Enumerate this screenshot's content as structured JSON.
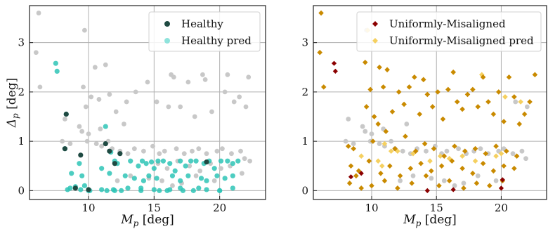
{
  "chart_data": [
    {
      "type": "scatter",
      "xlabel": "M_p [deg]",
      "ylabel": "Δ_p [deg]",
      "xlim": [
        5.5,
        23.5
      ],
      "ylim": [
        -0.18,
        3.75
      ],
      "xticks": [
        10,
        15,
        20
      ],
      "yticks": [
        0,
        1,
        2,
        3
      ],
      "grid": true,
      "legend_position": "top-right",
      "background_points": {
        "color": "#c8c8c8",
        "x": [
          6.2,
          6.0,
          6.3,
          9.7,
          9.6,
          10.5,
          11.3,
          9.8,
          10.2,
          10.8,
          11.6,
          12.1,
          12.9,
          13.6,
          14.5,
          15.2,
          16.3,
          16.5,
          16.1,
          17.0,
          17.6,
          18.1,
          18.7,
          18.9,
          19.4,
          20.4,
          20.6,
          21.1,
          21.5,
          22.0,
          22.2,
          8.2,
          8.0,
          8.6,
          9.3,
          9.9,
          10.6,
          11.0,
          11.8,
          12.4,
          13.0,
          13.5,
          14.2,
          14.9,
          15.4,
          15.8,
          16.7,
          17.3,
          17.9,
          18.4,
          19.0,
          19.8,
          20.2,
          20.9,
          21.6,
          21.9,
          15.3,
          16.0,
          16.8,
          17.7,
          18.5,
          19.3,
          20.1,
          20.8,
          21.7,
          22.3,
          12.2,
          13.2,
          14.6,
          15.6,
          16.4,
          17.1,
          18.2,
          19.6,
          9.5,
          10.0,
          10.9,
          11.5,
          12.7
        ],
        "y": [
          3.6,
          2.8,
          2.1,
          3.25,
          2.1,
          2.5,
          2.55,
          1.7,
          1.9,
          1.85,
          1.95,
          1.6,
          1.8,
          2.0,
          2.2,
          1.8,
          2.35,
          2.3,
          1.7,
          1.7,
          2.2,
          1.5,
          2.35,
          2.25,
          1.6,
          2.0,
          2.35,
          1.8,
          1.9,
          1.7,
          2.3,
          1.45,
          1.0,
          0.95,
          1.3,
          1.0,
          0.95,
          0.9,
          0.85,
          0.8,
          0.75,
          0.85,
          0.8,
          0.9,
          0.75,
          0.8,
          0.85,
          0.75,
          0.8,
          0.85,
          0.75,
          0.8,
          0.85,
          0.75,
          0.8,
          0.65,
          0.55,
          0.45,
          0.6,
          0.5,
          0.4,
          0.55,
          0.45,
          0.5,
          0.35,
          0.6,
          0.2,
          0.3,
          0.25,
          0.2,
          0.1,
          0.15,
          0.3,
          0.2,
          1.2,
          1.15,
          1.25,
          1.0,
          1.35
        ]
      },
      "series": [
        {
          "name": "Healthy pred",
          "color": "#2ec4b6",
          "x": [
            7.5,
            7.6,
            8.3,
            8.2,
            8.7,
            9.3,
            9.5,
            9.7,
            11.3,
            11.7,
            12.0,
            12.2,
            8.4,
            8.6,
            9.0,
            9.4,
            10.1,
            11.0,
            11.6,
            12.8,
            13.2,
            13.8,
            14.1,
            14.4,
            14.8,
            15.0,
            15.3,
            15.7,
            16.2,
            16.6,
            17.0,
            17.4,
            17.8,
            18.2,
            18.8,
            19.2,
            19.6,
            20.1,
            20.6,
            21.0,
            21.4,
            13.5,
            14.2,
            14.6,
            15.2,
            16.4,
            17.0,
            17.6,
            18.6,
            19.0,
            19.8,
            20.4,
            21.0,
            11.4,
            11.9,
            12.5,
            14.0,
            15.4,
            16.2,
            17.2,
            18.4,
            20.0,
            10.0,
            11.0,
            12.0,
            13.0,
            14.0,
            15.0,
            16.0,
            17.0,
            18.0,
            19.0,
            20.0,
            21.0
          ],
          "y": [
            2.58,
            2.42,
            1.55,
            0.85,
            0.35,
            0.55,
            0.3,
            0.1,
            1.3,
            0.78,
            0.6,
            0.55,
            0.02,
            0.05,
            0.08,
            0.02,
            0.0,
            0.45,
            0.35,
            0.3,
            0.6,
            0.5,
            0.6,
            0.55,
            0.58,
            0.45,
            0.6,
            0.6,
            0.55,
            0.4,
            0.6,
            0.5,
            0.6,
            0.6,
            0.55,
            0.6,
            0.45,
            0.6,
            0.6,
            0.55,
            0.6,
            0.25,
            0.2,
            0.3,
            0.25,
            0.3,
            0.2,
            0.3,
            0.25,
            0.2,
            0.3,
            0.25,
            0.3,
            0.0,
            0.02,
            0.0,
            0.05,
            0.0,
            0.02,
            0.0,
            0.05,
            0.0,
            0.0,
            0.02,
            0.0,
            0.05,
            0.0,
            0.02,
            0.0,
            0.05,
            0.0,
            0.02,
            0.0,
            0.05
          ]
        },
        {
          "name": "Healthy",
          "color": "#1f4a42",
          "x": [
            8.3,
            8.2,
            9.4,
            11.3,
            11.6,
            12.0,
            12.4,
            19.0,
            9.0,
            10.0
          ],
          "y": [
            1.55,
            0.85,
            0.72,
            0.95,
            0.8,
            0.55,
            0.75,
            0.58,
            0.05,
            0.02
          ]
        }
      ]
    },
    {
      "type": "scatter",
      "xlabel": "M_p [deg]",
      "ylabel": "",
      "xlim": [
        5.5,
        23.5
      ],
      "ylim": [
        -0.18,
        3.75
      ],
      "xticks": [
        10,
        15,
        20
      ],
      "yticks": [
        0,
        1,
        2,
        3
      ],
      "grid": true,
      "legend_position": "top-right",
      "background_points": {
        "color": "#c8c8c8",
        "x": [
          8.2,
          8.0,
          8.6,
          9.3,
          9.9,
          10.6,
          11.0,
          11.8,
          12.4,
          13.0,
          13.5,
          14.2,
          14.9,
          15.4,
          15.8,
          16.7,
          17.3,
          17.9,
          18.4,
          19.0,
          19.8,
          20.2,
          20.9,
          21.6,
          21.9,
          12.2,
          13.2,
          14.6,
          15.6,
          16.4,
          17.1,
          18.2,
          19.6,
          9.5,
          10.0,
          10.9,
          11.5,
          12.7,
          9.6,
          21.1,
          22.0
        ],
        "y": [
          1.45,
          1.0,
          0.95,
          1.3,
          1.0,
          0.95,
          0.9,
          0.85,
          0.8,
          0.75,
          0.85,
          0.8,
          0.9,
          0.75,
          0.8,
          0.85,
          0.75,
          0.8,
          0.85,
          0.75,
          0.8,
          0.85,
          0.75,
          0.8,
          0.65,
          0.2,
          0.3,
          0.25,
          0.2,
          0.1,
          0.15,
          0.3,
          0.2,
          1.2,
          1.15,
          1.25,
          1.0,
          1.35,
          3.25,
          1.8,
          1.7
        ]
      },
      "series": [
        {
          "name": "Uniformly-Misaligned pred",
          "color": "#f5d060",
          "x": [
            9.7,
            11.0,
            11.5,
            12.0,
            10.8,
            15.3,
            16.3,
            18.5,
            19.6,
            20.3,
            21.5,
            13.2,
            14.5,
            16.0,
            17.0,
            18.0,
            20.0,
            9.2,
            10.5
          ],
          "y": [
            3.25,
            0.95,
            0.8,
            0.8,
            0.5,
            0.7,
            2.4,
            2.35,
            0.7,
            1.9,
            1.8,
            0.75,
            0.6,
            0.65,
            0.7,
            0.6,
            0.75,
            0.7,
            0.6
          ]
        },
        {
          "name": "Uniformly-Misaligned",
          "color": "#c98a00",
          "x": [
            6.1,
            6.0,
            6.3,
            8.2,
            8.6,
            8.8,
            9.5,
            9.9,
            10.2,
            10.6,
            10.9,
            11.2,
            11.6,
            12.1,
            12.5,
            12.9,
            13.3,
            13.7,
            14.0,
            14.3,
            14.7,
            15.1,
            15.5,
            15.9,
            16.3,
            16.6,
            17.0,
            17.4,
            17.8,
            18.2,
            18.6,
            19.0,
            19.4,
            19.8,
            20.2,
            20.6,
            21.0,
            21.4,
            21.8,
            22.2,
            22.6,
            9.6,
            10.1,
            10.5,
            11.1,
            11.8,
            12.6,
            13.4,
            14.1,
            14.8,
            15.6,
            16.4,
            17.2,
            18.0,
            18.8,
            19.6,
            20.4,
            21.2,
            8.4,
            9.0,
            9.8,
            10.7,
            11.4,
            12.2,
            13.0,
            13.8,
            14.6,
            15.4,
            16.2,
            17.0,
            17.8,
            18.6,
            19.4,
            20.2,
            21.0,
            8.3,
            9.2,
            10.0,
            11.0,
            12.0,
            13.1,
            14.2,
            15.2,
            16.0,
            17.1,
            18.1,
            19.1,
            20.1
          ],
          "y": [
            3.6,
            2.8,
            2.1,
            0.9,
            0.85,
            0.3,
            2.6,
            2.05,
            1.5,
            2.5,
            2.1,
            2.45,
            1.6,
            2.0,
            1.75,
            2.1,
            2.3,
            1.55,
            2.25,
            1.95,
            1.7,
            2.0,
            1.45,
            2.05,
            2.4,
            1.8,
            1.65,
            1.95,
            2.05,
            1.7,
            2.3,
            1.8,
            1.55,
            2.0,
            1.4,
            2.3,
            1.9,
            1.35,
            1.55,
            1.8,
            2.35,
            1.7,
            1.0,
            1.35,
            1.2,
            0.85,
            1.1,
            0.8,
            0.95,
            0.85,
            0.7,
            0.9,
            0.8,
            0.85,
            0.75,
            0.9,
            0.8,
            0.7,
            0.5,
            0.4,
            0.6,
            0.35,
            0.5,
            0.3,
            0.45,
            0.55,
            0.4,
            0.5,
            0.6,
            0.45,
            0.35,
            0.55,
            0.4,
            0.5,
            0.45,
            0.15,
            0.05,
            0.1,
            0.2,
            0.05,
            0.15,
            0.3,
            0.1,
            0.2,
            0.05,
            0.15,
            0.1,
            0.2
          ]
        },
        {
          "name": "Uniformly-Misaligned",
          "color": "#8b0000",
          "x": [
            7.1,
            7.2,
            8.4,
            9.2,
            14.3,
            16.3,
            20.0,
            20.1
          ],
          "y": [
            2.58,
            2.42,
            0.28,
            0.35,
            0.0,
            0.02,
            0.05,
            0.22
          ]
        }
      ]
    }
  ],
  "legends": [
    {
      "items": [
        {
          "label": "Healthy",
          "color": "#1f4a42"
        },
        {
          "label": "Healthy pred",
          "color": "#8fe3dc"
        }
      ]
    },
    {
      "items": [
        {
          "label": "Uniformly-Misaligned",
          "color": "#8b0000"
        },
        {
          "label": "Uniformly-Misaligned pred",
          "color": "#f5d060"
        }
      ]
    }
  ]
}
